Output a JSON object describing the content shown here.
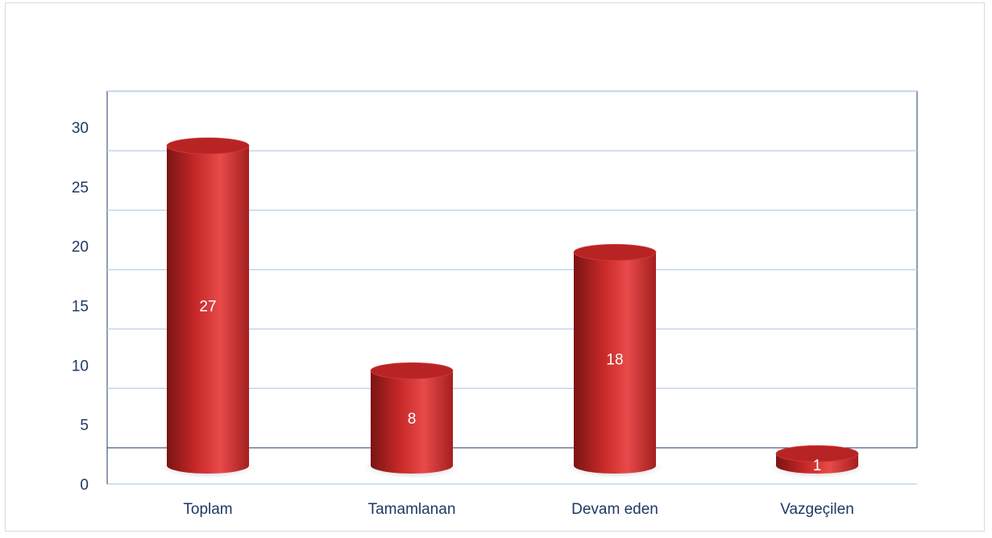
{
  "chart_data": {
    "type": "bar",
    "style": "3d-cylinder",
    "title": "",
    "xlabel": "",
    "ylabel": "",
    "categories": [
      "Toplam",
      "Tamamlanan",
      "Devam eden",
      "Vazgeçilen"
    ],
    "values": [
      27,
      8,
      18,
      1
    ],
    "data_labels": [
      "27",
      "8",
      "18",
      "1"
    ],
    "yticks": [
      0,
      5,
      10,
      15,
      20,
      25,
      30
    ],
    "ylim": [
      0,
      30
    ],
    "grid": true,
    "legend": "none",
    "colors": {
      "bar": "#c62828",
      "bar_light": "#e53935",
      "bar_dark": "#8e1a1a",
      "grid": "#c5d5e8",
      "text": "#1f3864"
    }
  }
}
